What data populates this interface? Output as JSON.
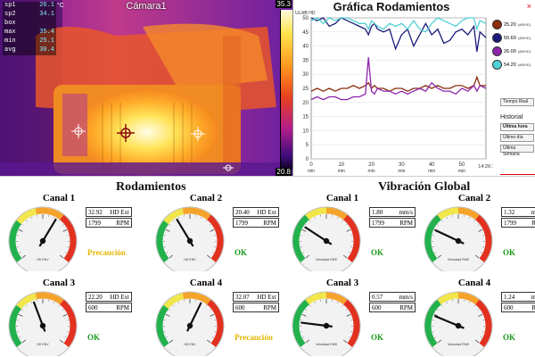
{
  "camera": {
    "title": "Cámara1",
    "unit": "°C",
    "scale_max": "35.3",
    "scale_min": "20.8",
    "readouts": [
      {
        "label": "sp1",
        "value": "26.1"
      },
      {
        "label": "sp2",
        "value": "34.1"
      },
      {
        "label": "box",
        "value": ""
      },
      {
        "label": "max",
        "value": "35.4"
      },
      {
        "label": "min",
        "value": "25.1"
      },
      {
        "label": "avg",
        "value": "30.4"
      }
    ]
  },
  "chart": {
    "title": "Gráfica Rodamientos",
    "y_header": "UL/dB HD",
    "close_icon": "×",
    "legend": [
      {
        "value": "25.20",
        "sub": "(dB/HD)",
        "color": "#8b2e0e"
      },
      {
        "value": "50.60",
        "sub": "(dB/HD)",
        "color": "#1a1a7a"
      },
      {
        "value": "26.00",
        "sub": "(dB/HD)",
        "color": "#8e24aa"
      },
      {
        "value": "54.20",
        "sub": "(dB/HD)",
        "color": "#4fd0d6"
      }
    ],
    "buttons": {
      "realtime": "Tiempo Real",
      "historial": "Historial",
      "hour": "Última hora",
      "day": "Último día",
      "week": "Última Semana"
    },
    "time_end": "14:26:16",
    "y_ticks": [
      "0",
      "5",
      "10",
      "15",
      "20",
      "25",
      "30",
      "35",
      "40",
      "45",
      "50"
    ],
    "x_ticks": [
      "0",
      "10",
      "20",
      "30",
      "40",
      "50"
    ],
    "x_unit": "min"
  },
  "chart_data": {
    "type": "line",
    "x": [
      0,
      2,
      4,
      6,
      8,
      10,
      12,
      14,
      16,
      18,
      19,
      20,
      21,
      22,
      24,
      26,
      28,
      30,
      32,
      34,
      36,
      38,
      40,
      42,
      44,
      46,
      48,
      50,
      52,
      54,
      55,
      56,
      58
    ],
    "ylim": [
      0,
      50
    ],
    "xlim": [
      0,
      58
    ],
    "series": [
      {
        "name": "25.20",
        "color": "#8b2e0e",
        "values": [
          24,
          25,
          24,
          25,
          24,
          25,
          25,
          26,
          25,
          26,
          27,
          25,
          26,
          25,
          25,
          24,
          25,
          25,
          24,
          25,
          25,
          26,
          25,
          26,
          25,
          25,
          26,
          26,
          25,
          26,
          29,
          26,
          26
        ]
      },
      {
        "name": "50.60",
        "color": "#1a1a7a",
        "values": [
          50,
          49,
          50,
          47,
          48,
          50,
          49,
          48,
          47,
          46,
          44,
          47,
          48,
          46,
          45,
          46,
          39,
          44,
          46,
          40,
          44,
          48,
          44,
          46,
          41,
          42,
          45,
          46,
          44,
          47,
          38,
          45,
          43
        ]
      },
      {
        "name": "26.00",
        "color": "#8e24aa",
        "values": [
          21,
          22,
          21,
          22,
          22,
          21,
          21,
          22,
          22,
          23,
          36,
          24,
          23,
          25,
          24,
          24,
          23,
          24,
          23,
          24,
          25,
          24,
          27,
          25,
          24,
          24,
          23,
          25,
          24,
          26,
          24,
          26,
          25
        ]
      },
      {
        "name": "54.20",
        "color": "#4fd0d6",
        "values": [
          49,
          50,
          48,
          50,
          49,
          50,
          50,
          49,
          48,
          48,
          46,
          49,
          48,
          47,
          46,
          48,
          47,
          48,
          46,
          49,
          46,
          45,
          48,
          50,
          49,
          48,
          47,
          49,
          50,
          50,
          46,
          49,
          48
        ]
      }
    ]
  },
  "sections": {
    "left": "Rodamientos",
    "right": "Vibración Global"
  },
  "gauges": [
    {
      "title": "Canal 1",
      "value": "32.92",
      "unit": "HD Ext",
      "rpm_value": "1799",
      "rpm_unit": "RPM",
      "status": "Precaución",
      "status_color": "#e3b700",
      "level": 0.62,
      "label": "HD ENV",
      "type": "bearing"
    },
    {
      "title": "Canal 2",
      "value": "20.40",
      "unit": "HD Ext",
      "rpm_value": "1799",
      "rpm_unit": "RPM",
      "status": "OK",
      "status_color": "#1a9a1a",
      "level": 0.38,
      "label": "HD ENV",
      "type": "bearing"
    },
    {
      "title": "Canal 3",
      "value": "22.20",
      "unit": "HD Ext",
      "rpm_value": "600",
      "rpm_unit": "RPM",
      "status": "OK",
      "status_color": "#1a9a1a",
      "level": 0.42,
      "label": "HD ENV",
      "type": "bearing"
    },
    {
      "title": "Canal 4",
      "value": "32.07",
      "unit": "HD Ext",
      "rpm_value": "600",
      "rpm_unit": "RPM",
      "status": "Precaución",
      "status_color": "#e3b700",
      "level": 0.6,
      "label": "HD ENV",
      "type": "bearing"
    },
    {
      "title": "Canal 1",
      "value": "1.80",
      "unit": "mm/s",
      "rpm_value": "1799",
      "rpm_unit": "RPM",
      "status": "OK",
      "status_color": "#1a9a1a",
      "level": 0.28,
      "label": "Velocidad RMS",
      "type": "vibration"
    },
    {
      "title": "Canal 2",
      "value": "1.32",
      "unit": "mm/s",
      "rpm_value": "1799",
      "rpm_unit": "RPM",
      "status": "OK",
      "status_color": "#1a9a1a",
      "level": 0.25,
      "label": "Velocidad RMS",
      "type": "vibration"
    },
    {
      "title": "Canal 3",
      "value": "0.57",
      "unit": "mm/s",
      "rpm_value": "600",
      "rpm_unit": "RPM",
      "status": "OK",
      "status_color": "#1a9a1a",
      "level": 0.18,
      "label": "Velocidad RMS",
      "type": "vibration"
    },
    {
      "title": "Canal 4",
      "value": "1.24",
      "unit": "mm/s",
      "rpm_value": "600",
      "rpm_unit": "RPM",
      "status": "OK",
      "status_color": "#1a9a1a",
      "level": 0.24,
      "label": "Velocidad RMS",
      "type": "vibration"
    }
  ]
}
